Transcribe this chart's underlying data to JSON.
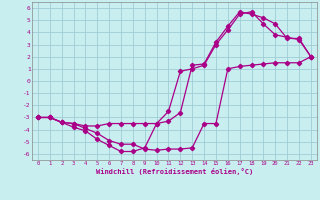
{
  "xlabel": "Windchill (Refroidissement éolien,°C)",
  "bg_color": "#c8eef0",
  "grid_color": "#a0ccd4",
  "line_color": "#aa0088",
  "xlim": [
    -0.5,
    23.5
  ],
  "ylim": [
    -6.5,
    6.5
  ],
  "xticks": [
    0,
    1,
    2,
    3,
    4,
    5,
    6,
    7,
    8,
    9,
    10,
    11,
    12,
    13,
    14,
    15,
    16,
    17,
    18,
    19,
    20,
    21,
    22,
    23
  ],
  "yticks": [
    -6,
    -5,
    -4,
    -3,
    -2,
    -1,
    0,
    1,
    2,
    3,
    4,
    5,
    6
  ],
  "line1_x": [
    0,
    1,
    2,
    3,
    4,
    5,
    6,
    7,
    8,
    9,
    10,
    11,
    12,
    13,
    14,
    15,
    16,
    17,
    18,
    19,
    20,
    21,
    22,
    23
  ],
  "line1_y": [
    -3,
    -3,
    -3.4,
    -3.5,
    -3.7,
    -3.7,
    -3.5,
    -3.5,
    -3.5,
    -3.5,
    -3.5,
    -3.3,
    -2.6,
    1.3,
    1.4,
    3.2,
    4.5,
    5.7,
    5.5,
    5.2,
    4.7,
    3.5,
    3.5,
    2.0
  ],
  "line2_x": [
    0,
    1,
    2,
    3,
    4,
    5,
    6,
    7,
    8,
    9,
    10,
    11,
    12,
    13,
    14,
    15,
    16,
    17,
    18,
    19,
    20,
    21,
    22,
    23
  ],
  "line2_y": [
    -3,
    -3,
    -3.4,
    -3.5,
    -3.9,
    -4.3,
    -4.9,
    -5.2,
    -5.2,
    -5.6,
    -5.7,
    -5.6,
    -5.6,
    -5.5,
    -3.5,
    -3.5,
    1.0,
    1.2,
    1.3,
    1.4,
    1.5,
    1.5,
    1.5,
    2.0
  ],
  "line3_x": [
    0,
    1,
    2,
    3,
    4,
    5,
    6,
    7,
    8,
    9,
    10,
    11,
    12,
    13,
    14,
    15,
    16,
    17,
    18,
    19,
    20,
    21,
    22,
    23
  ],
  "line3_y": [
    -3,
    -3,
    -3.4,
    -3.8,
    -4.1,
    -4.8,
    -5.3,
    -5.8,
    -5.8,
    -5.5,
    -3.5,
    -2.5,
    0.8,
    1.0,
    1.3,
    3.0,
    4.2,
    5.5,
    5.7,
    4.7,
    3.8,
    3.6,
    3.4,
    2.0
  ]
}
